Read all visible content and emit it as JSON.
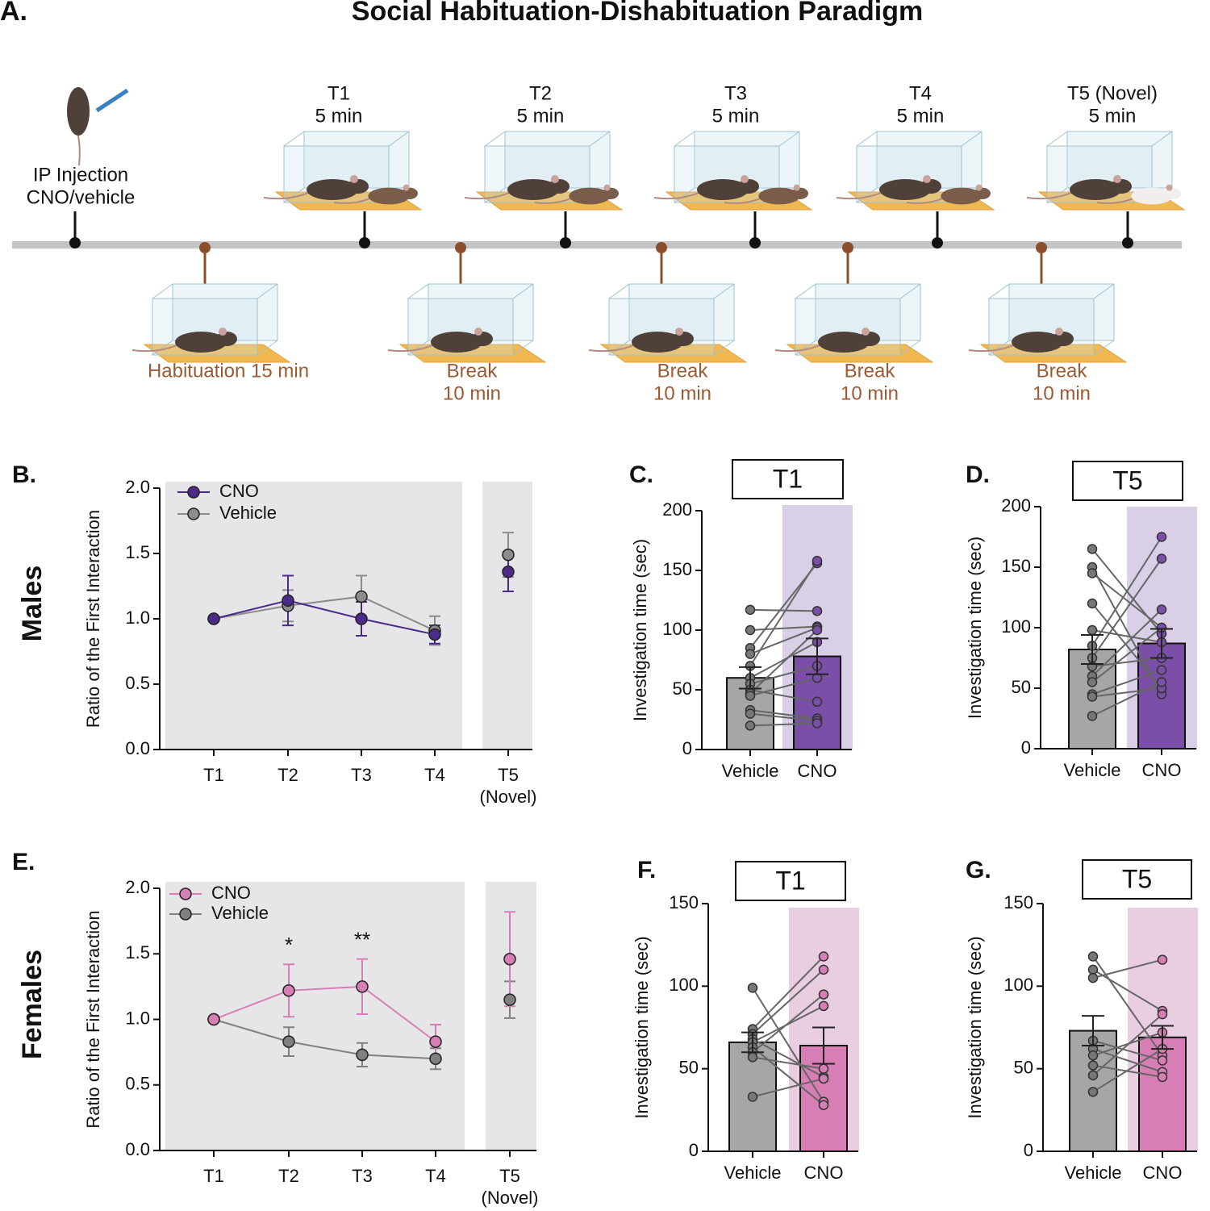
{
  "panel_a": {
    "label": "A.",
    "title": "Social Habituation-Dishabituation Paradigm",
    "top_events": [
      {
        "title": "IP Injection",
        "sub": "CNO/vehicle"
      },
      {
        "title": "T1",
        "sub": "5 min"
      },
      {
        "title": "T2",
        "sub": "5 min"
      },
      {
        "title": "T3",
        "sub": "5 min"
      },
      {
        "title": "T4",
        "sub": "5 min"
      },
      {
        "title": "T5 (Novel)",
        "sub": "5 min"
      }
    ],
    "bottom_events": [
      {
        "title": "Habituation 15 min"
      },
      {
        "title": "Break",
        "sub": "10 min"
      },
      {
        "title": "Break",
        "sub": "10 min"
      },
      {
        "title": "Break",
        "sub": "10 min"
      },
      {
        "title": "Break",
        "sub": "10 min"
      }
    ]
  },
  "row_labels": [
    "Males",
    "Females"
  ],
  "chart_data": [
    {
      "type": "line",
      "label": "B.",
      "ylabel": "Ratio of the First Interaction",
      "categories": [
        "T1",
        "T2",
        "T3",
        "T4",
        "T5 (Novel)"
      ],
      "ylim": [
        0,
        2
      ],
      "yticks": [
        {
          "value": 0,
          "label": "0.0"
        },
        {
          "value": 0.5,
          "label": "0.5"
        },
        {
          "value": 1,
          "label": "1.0"
        },
        {
          "value": 1.5,
          "label": "1.5"
        },
        {
          "value": 2,
          "label": "2.0"
        }
      ],
      "series": [
        {
          "name": "CNO",
          "color": "#4b2a8a",
          "values": [
            1.0,
            1.14,
            1.0,
            0.88,
            1.36
          ],
          "errors": [
            0,
            0.19,
            0.13,
            0.07,
            0.15
          ]
        },
        {
          "name": "Vehicle",
          "color": "#8c8c8c",
          "values": [
            1.0,
            1.1,
            1.17,
            0.91,
            1.49
          ],
          "errors": [
            0,
            0.12,
            0.16,
            0.11,
            0.17
          ]
        }
      ]
    },
    {
      "type": "bar",
      "label": "C.",
      "title": "T1",
      "ylabel": "Investigation time (sec)",
      "categories": [
        "Vehicle",
        "CNO"
      ],
      "colors": [
        "#a6a6a6",
        "#7b4fa8"
      ],
      "shade": "#d9cfe6",
      "values": [
        60,
        78
      ],
      "errors": [
        9,
        15
      ],
      "ylim": [
        0,
        200
      ],
      "yticks": [
        0,
        50,
        100,
        150,
        200
      ],
      "points": [
        [
          117,
          116
        ],
        [
          100,
          103
        ],
        [
          85,
          156
        ],
        [
          80,
          102
        ],
        [
          70,
          158
        ],
        [
          60,
          90
        ],
        [
          55,
          70
        ],
        [
          50,
          40
        ],
        [
          47,
          100
        ],
        [
          45,
          60
        ],
        [
          33,
          26
        ],
        [
          30,
          24
        ],
        [
          20,
          22
        ]
      ]
    },
    {
      "type": "bar",
      "label": "D.",
      "title": "T5",
      "ylabel": "Investigation time (sec)",
      "categories": [
        "Vehicle",
        "CNO"
      ],
      "colors": [
        "#a6a6a6",
        "#7b4fa8"
      ],
      "shade": "#d9cfe6",
      "values": [
        82,
        87
      ],
      "errors": [
        12,
        12
      ],
      "ylim": [
        0,
        200
      ],
      "yticks": [
        0,
        50,
        100,
        150,
        200
      ],
      "points": [
        [
          165,
          95
        ],
        [
          150,
          45
        ],
        [
          145,
          100
        ],
        [
          120,
          50
        ],
        [
          98,
          88
        ],
        [
          85,
          175
        ],
        [
          75,
          157
        ],
        [
          68,
          75
        ],
        [
          60,
          115
        ],
        [
          55,
          100
        ],
        [
          45,
          65
        ],
        [
          43,
          50
        ],
        [
          27,
          55
        ]
      ]
    },
    {
      "type": "line",
      "label": "E.",
      "ylabel": "Ratio of the First Interaction",
      "categories": [
        "T1",
        "T2",
        "T3",
        "T4",
        "T5 (Novel)"
      ],
      "ylim": [
        0,
        2
      ],
      "yticks": [
        {
          "value": 0,
          "label": "0.0"
        },
        {
          "value": 0.5,
          "label": "0.5"
        },
        {
          "value": 1,
          "label": "1.0"
        },
        {
          "value": 1.5,
          "label": "1.5"
        },
        {
          "value": 2,
          "label": "2.0"
        }
      ],
      "annotations": [
        null,
        "*",
        "**",
        null,
        null
      ],
      "series": [
        {
          "name": "CNO",
          "color": "#d77fb5",
          "values": [
            1.0,
            1.22,
            1.25,
            0.83,
            1.46
          ],
          "errors": [
            0,
            0.2,
            0.21,
            0.13,
            0.36
          ]
        },
        {
          "name": "Vehicle",
          "color": "#808080",
          "values": [
            1.0,
            0.83,
            0.73,
            0.7,
            1.15
          ],
          "errors": [
            0,
            0.11,
            0.09,
            0.08,
            0.14
          ]
        }
      ]
    },
    {
      "type": "bar",
      "label": "F.",
      "title": "T1",
      "ylabel": "Investigation time (sec)",
      "categories": [
        "Vehicle",
        "CNO"
      ],
      "colors": [
        "#a6a6a6",
        "#d77fb5"
      ],
      "shade": "#e9cde1",
      "values": [
        66,
        64
      ],
      "errors": [
        6,
        11
      ],
      "ylim": [
        0,
        150
      ],
      "yticks": [
        0,
        50,
        100,
        150
      ],
      "points": [
        [
          99,
          30
        ],
        [
          74,
          118
        ],
        [
          71,
          110
        ],
        [
          68,
          45
        ],
        [
          66,
          88
        ],
        [
          63,
          28
        ],
        [
          60,
          95
        ],
        [
          57,
          50
        ],
        [
          33,
          44
        ]
      ]
    },
    {
      "type": "bar",
      "label": "G.",
      "title": "T5",
      "ylabel": "Investigation time (sec)",
      "categories": [
        "Vehicle",
        "CNO"
      ],
      "colors": [
        "#a6a6a6",
        "#d77fb5"
      ],
      "shade": "#e9cde1",
      "values": [
        73,
        69
      ],
      "errors": [
        9,
        7
      ],
      "ylim": [
        0,
        150
      ],
      "yticks": [
        0,
        50,
        100,
        150
      ],
      "points": [
        [
          118,
          58
        ],
        [
          110,
          85
        ],
        [
          105,
          116
        ],
        [
          67,
          55
        ],
        [
          62,
          48
        ],
        [
          58,
          72
        ],
        [
          52,
          45
        ],
        [
          46,
          83
        ],
        [
          36,
          62
        ]
      ]
    }
  ]
}
